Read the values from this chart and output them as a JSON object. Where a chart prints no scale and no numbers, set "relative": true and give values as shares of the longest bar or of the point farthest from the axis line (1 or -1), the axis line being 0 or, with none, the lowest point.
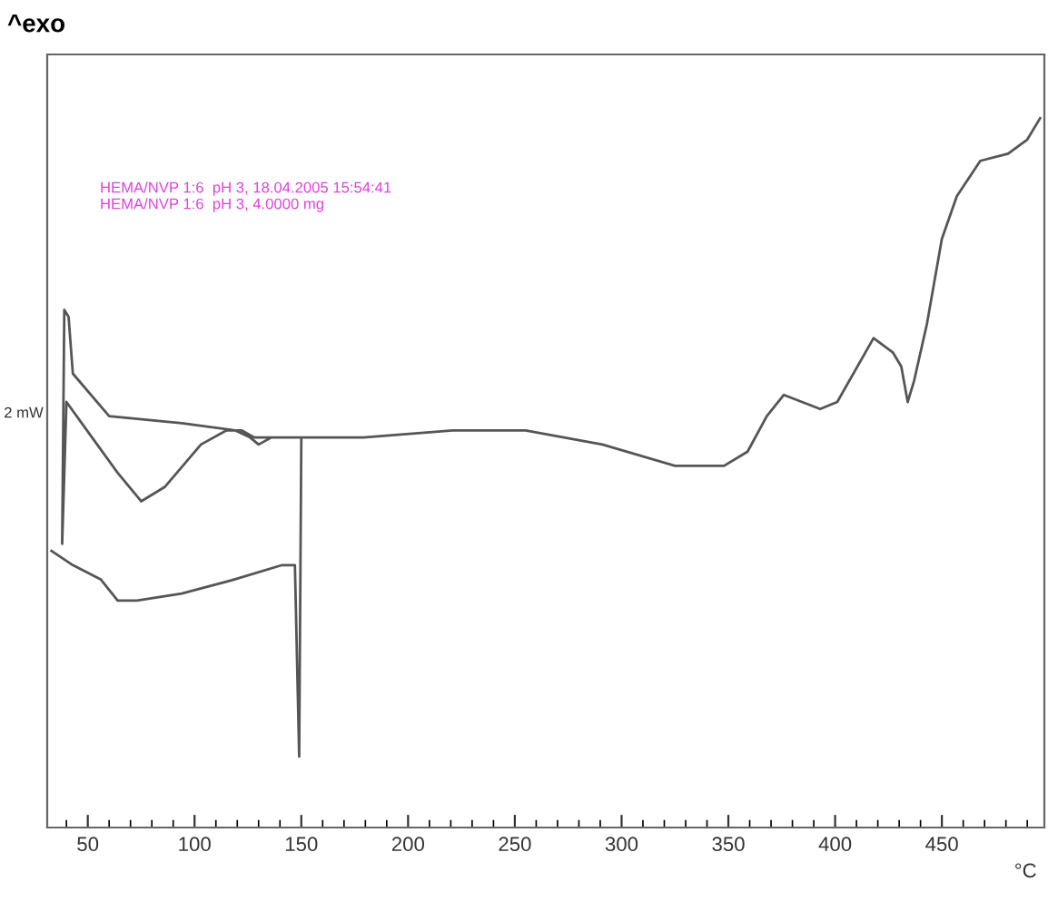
{
  "chart_data": {
    "type": "line",
    "relative": true,
    "ylabel": "2 mW",
    "xlabel": "°C",
    "annotations": [
      "^exo",
      "HEMA/NVP 1:6  pH 3, 18.04.2005 15:54:41",
      "HEMA/NVP 1:6  pH 3, 4.0000 mg"
    ],
    "xlim": [
      31,
      498
    ],
    "xticks": [
      50,
      100,
      150,
      200,
      250,
      300,
      350,
      400,
      450
    ],
    "grid": false,
    "legend": false,
    "marker": "none",
    "line_style": "solid",
    "series": [
      {
        "color": "#555555",
        "x": [
          33,
          43,
          56,
          64,
          73,
          94,
          119,
          141,
          147,
          149,
          150,
          136,
          130,
          126,
          119,
          94,
          60,
          43,
          41,
          39,
          38,
          40,
          52,
          64,
          75,
          86,
          103,
          115,
          122,
          128,
          136,
          150,
          179,
          221,
          255,
          291,
          325,
          348,
          359,
          368,
          376,
          393,
          401,
          418,
          427,
          431,
          434,
          437,
          443,
          450,
          457,
          468,
          481,
          490,
          496
        ],
        "values": [
          0.39,
          0.37,
          0.35,
          0.32,
          0.32,
          0.33,
          0.35,
          0.37,
          0.37,
          0.1,
          0.55,
          0.55,
          0.54,
          0.55,
          0.56,
          0.57,
          0.58,
          0.64,
          0.72,
          0.73,
          0.4,
          0.6,
          0.55,
          0.5,
          0.46,
          0.48,
          0.54,
          0.56,
          0.56,
          0.55,
          0.55,
          0.55,
          0.55,
          0.56,
          0.56,
          0.54,
          0.51,
          0.51,
          0.53,
          0.58,
          0.61,
          0.59,
          0.6,
          0.69,
          0.67,
          0.65,
          0.6,
          0.63,
          0.71,
          0.83,
          0.89,
          0.94,
          0.95,
          0.97,
          1.0
        ]
      }
    ]
  }
}
